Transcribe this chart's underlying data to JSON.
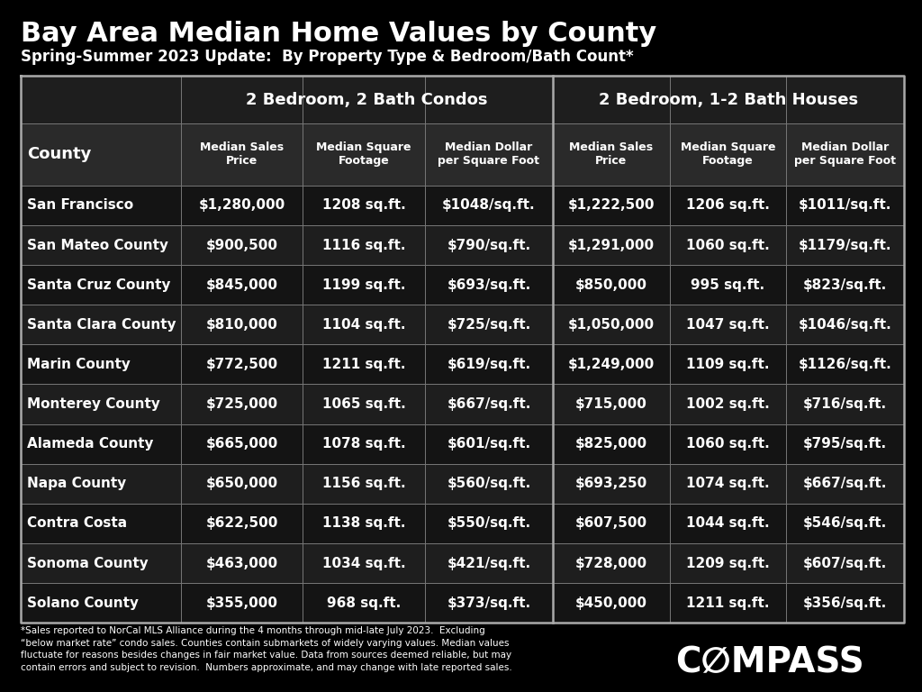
{
  "title": "Bay Area Median Home Values by County",
  "subtitle": "Spring-Summer 2023 Update:  By Property Type & Bedroom/Bath Count*",
  "bg_color": "#000000",
  "text_color": "#ffffff",
  "border_color": "#888888",
  "col_group1": "2 Bedroom, 2 Bath Condos",
  "col_group2": "2 Bedroom, 1-2 Bath Houses",
  "col_headers": [
    "County",
    "Median Sales\nPrice",
    "Median Square\nFootage",
    "Median Dollar\nper Square Foot",
    "Median Sales\nPrice",
    "Median Square\nFootage",
    "Median Dollar\nper Square Foot"
  ],
  "counties": [
    "San Francisco",
    "San Mateo County",
    "Santa Cruz County",
    "Santa Clara County",
    "Marin County",
    "Monterey County",
    "Alameda County",
    "Napa County",
    "Contra Costa",
    "Sonoma County",
    "Solano County"
  ],
  "condo_sales": [
    "$1,280,000",
    "$900,500",
    "$845,000",
    "$810,000",
    "$772,500",
    "$725,000",
    "$665,000",
    "$650,000",
    "$622,500",
    "$463,000",
    "$355,000"
  ],
  "condo_sqft": [
    "1208 sq.ft.",
    "1116 sq.ft.",
    "1199 sq.ft.",
    "1104 sq.ft.",
    "1211 sq.ft.",
    "1065 sq.ft.",
    "1078 sq.ft.",
    "1156 sq.ft.",
    "1138 sq.ft.",
    "1034 sq.ft.",
    "968 sq.ft."
  ],
  "condo_persqft": [
    "$1048/sq.ft.",
    "$790/sq.ft.",
    "$693/sq.ft.",
    "$725/sq.ft.",
    "$619/sq.ft.",
    "$667/sq.ft.",
    "$601/sq.ft.",
    "$560/sq.ft.",
    "$550/sq.ft.",
    "$421/sq.ft.",
    "$373/sq.ft."
  ],
  "house_sales": [
    "$1,222,500",
    "$1,291,000",
    "$850,000",
    "$1,050,000",
    "$1,249,000",
    "$715,000",
    "$825,000",
    "$693,250",
    "$607,500",
    "$728,000",
    "$450,000"
  ],
  "house_sqft": [
    "1206 sq.ft.",
    "1060 sq.ft.",
    "995 sq.ft.",
    "1047 sq.ft.",
    "1109 sq.ft.",
    "1002 sq.ft.",
    "1060 sq.ft.",
    "1074 sq.ft.",
    "1044 sq.ft.",
    "1209 sq.ft.",
    "1211 sq.ft."
  ],
  "house_persqft": [
    "$1011/sq.ft.",
    "$1179/sq.ft.",
    "$823/sq.ft.",
    "$1046/sq.ft.",
    "$1126/sq.ft.",
    "$716/sq.ft.",
    "$795/sq.ft.",
    "$667/sq.ft.",
    "$546/sq.ft.",
    "$607/sq.ft.",
    "$356/sq.ft."
  ],
  "footnote": "*Sales reported to NorCal MLS Alliance during the 4 months through mid-late July 2023.  Excluding\n“below market rate” condo sales. Counties contain submarkets of widely varying values. Median values\nfluctuate for reasons besides changes in fair market value. Data from sources deemed reliable, but may\ncontain errors and subject to revision.  Numbers approximate, and may change with late reported sales.",
  "title_fontsize": 22,
  "subtitle_fontsize": 12,
  "group_header_fontsize": 13,
  "col_header_fontsize": 9,
  "county_fontsize": 11,
  "data_fontsize": 11,
  "footnote_fontsize": 7.5,
  "compass_fontsize": 28
}
